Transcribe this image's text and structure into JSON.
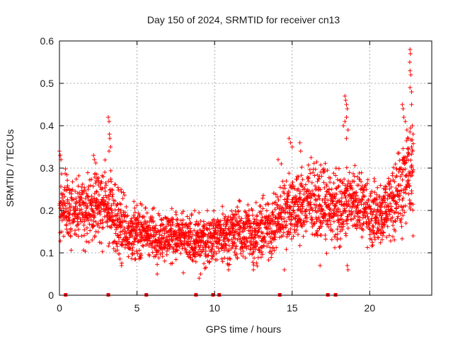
{
  "chart_data": {
    "type": "scatter",
    "title": "Day 150 of 2024, SRMTID for receiver cn13",
    "xlabel": "GPS time / hours",
    "ylabel": "SRMTID / TECUs",
    "xlim": [
      0,
      24
    ],
    "ylim": [
      0,
      0.6
    ],
    "xticks": [
      0,
      5,
      10,
      15,
      20
    ],
    "xtick_labels": [
      "0",
      "5",
      "10",
      "15",
      "20"
    ],
    "yticks": [
      0,
      0.1,
      0.2,
      0.3,
      0.4,
      0.5,
      0.6
    ],
    "ytick_labels": [
      "0",
      "0.1",
      "0.2",
      "0.3",
      "0.4",
      "0.5",
      "0.6"
    ],
    "grid": true,
    "marker": "plus",
    "series_color": "#ff0000",
    "trend": [
      [
        0,
        0.21
      ],
      [
        0.5,
        0.2
      ],
      [
        1,
        0.2
      ],
      [
        1.5,
        0.2
      ],
      [
        2,
        0.21
      ],
      [
        2.5,
        0.22
      ],
      [
        3,
        0.21
      ],
      [
        3.5,
        0.19
      ],
      [
        4,
        0.17
      ],
      [
        4.5,
        0.15
      ],
      [
        5,
        0.15
      ],
      [
        5.5,
        0.15
      ],
      [
        6,
        0.14
      ],
      [
        6.5,
        0.14
      ],
      [
        7,
        0.14
      ],
      [
        7.5,
        0.14
      ],
      [
        8,
        0.13
      ],
      [
        8.5,
        0.13
      ],
      [
        9,
        0.13
      ],
      [
        9.5,
        0.13
      ],
      [
        10,
        0.14
      ],
      [
        10.5,
        0.14
      ],
      [
        11,
        0.15
      ],
      [
        11.5,
        0.15
      ],
      [
        12,
        0.15
      ],
      [
        12.5,
        0.15
      ],
      [
        13,
        0.15
      ],
      [
        13.5,
        0.16
      ],
      [
        14,
        0.17
      ],
      [
        14.5,
        0.2
      ],
      [
        15,
        0.21
      ],
      [
        15.5,
        0.21
      ],
      [
        16,
        0.22
      ],
      [
        16.5,
        0.22
      ],
      [
        17,
        0.22
      ],
      [
        17.5,
        0.21
      ],
      [
        18,
        0.2
      ],
      [
        18.5,
        0.22
      ],
      [
        19,
        0.23
      ],
      [
        19.5,
        0.21
      ],
      [
        20,
        0.19
      ],
      [
        20.5,
        0.19
      ],
      [
        21,
        0.2
      ],
      [
        21.5,
        0.23
      ],
      [
        22,
        0.25
      ],
      [
        22.5,
        0.28
      ],
      [
        22.8,
        0.3
      ]
    ],
    "spread": [
      [
        0,
        0.05
      ],
      [
        3,
        0.06
      ],
      [
        5,
        0.04
      ],
      [
        10,
        0.04
      ],
      [
        14,
        0.05
      ],
      [
        17,
        0.06
      ],
      [
        20,
        0.05
      ],
      [
        22.8,
        0.08
      ]
    ],
    "highlights": [
      {
        "x": 0.0,
        "y": 0.34
      },
      {
        "x": 0.05,
        "y": 0.33
      },
      {
        "x": 0.1,
        "y": 0.32
      },
      {
        "x": 2.2,
        "y": 0.33
      },
      {
        "x": 2.25,
        "y": 0.32
      },
      {
        "x": 3.15,
        "y": 0.42
      },
      {
        "x": 3.2,
        "y": 0.41
      },
      {
        "x": 3.22,
        "y": 0.38
      },
      {
        "x": 3.25,
        "y": 0.37
      },
      {
        "x": 3.3,
        "y": 0.35
      },
      {
        "x": 3.2,
        "y": 0.34
      },
      {
        "x": 14.1,
        "y": 0.32
      },
      {
        "x": 14.3,
        "y": 0.31
      },
      {
        "x": 14.8,
        "y": 0.37
      },
      {
        "x": 14.9,
        "y": 0.36
      },
      {
        "x": 15.0,
        "y": 0.35
      },
      {
        "x": 15.5,
        "y": 0.36
      },
      {
        "x": 15.55,
        "y": 0.34
      },
      {
        "x": 18.4,
        "y": 0.47
      },
      {
        "x": 18.45,
        "y": 0.46
      },
      {
        "x": 18.5,
        "y": 0.45
      },
      {
        "x": 18.55,
        "y": 0.44
      },
      {
        "x": 18.5,
        "y": 0.42
      },
      {
        "x": 18.4,
        "y": 0.41
      },
      {
        "x": 18.3,
        "y": 0.4
      },
      {
        "x": 18.6,
        "y": 0.39
      },
      {
        "x": 18.5,
        "y": 0.37
      },
      {
        "x": 18.6,
        "y": 0.06
      },
      {
        "x": 18.55,
        "y": 0.07
      },
      {
        "x": 22.1,
        "y": 0.45
      },
      {
        "x": 22.15,
        "y": 0.44
      },
      {
        "x": 22.2,
        "y": 0.42
      },
      {
        "x": 22.3,
        "y": 0.41
      },
      {
        "x": 22.4,
        "y": 0.39
      },
      {
        "x": 22.5,
        "y": 0.37
      },
      {
        "x": 22.6,
        "y": 0.58
      },
      {
        "x": 22.62,
        "y": 0.57
      },
      {
        "x": 22.58,
        "y": 0.55
      },
      {
        "x": 22.6,
        "y": 0.53
      },
      {
        "x": 22.65,
        "y": 0.52
      },
      {
        "x": 22.6,
        "y": 0.49
      },
      {
        "x": 22.7,
        "y": 0.48
      },
      {
        "x": 22.7,
        "y": 0.45
      },
      {
        "x": 22.75,
        "y": 0.4
      },
      {
        "x": 22.8,
        "y": 0.38
      },
      {
        "x": 22.7,
        "y": 0.35
      },
      {
        "x": 22.8,
        "y": 0.14
      },
      {
        "x": 9.0,
        "y": 0.04
      },
      {
        "x": 9.1,
        "y": 0.05
      },
      {
        "x": 6.3,
        "y": 0.05
      },
      {
        "x": 10.9,
        "y": 0.06
      },
      {
        "x": 14.5,
        "y": 0.06
      },
      {
        "x": 16.8,
        "y": 0.07
      },
      {
        "x": 12.5,
        "y": 0.06
      },
      {
        "x": 4.0,
        "y": 0.07
      }
    ],
    "zero_marks": [
      0.4,
      3.15,
      5.6,
      8.8,
      9.9,
      10.3,
      14.2,
      17.3,
      17.8
    ]
  }
}
